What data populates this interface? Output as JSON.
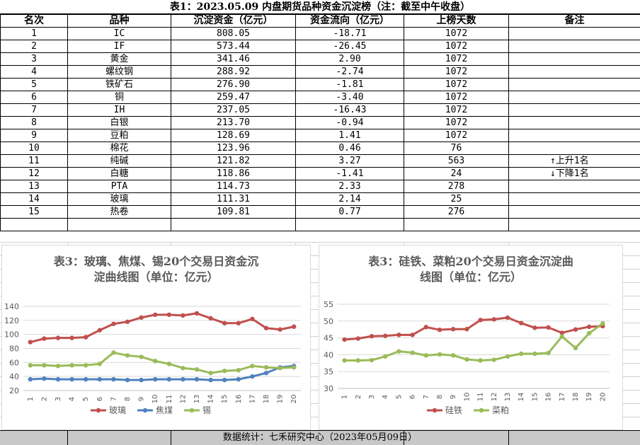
{
  "title": "表1：2023.05.09 内盘期货品种资金沉淀榜（注：截至中午收盘）",
  "table": {
    "headers": [
      "名次",
      "品种",
      "沉淀资金（亿元）",
      "资金流向（亿元）",
      "上榜天数",
      "备注"
    ],
    "rows": [
      [
        "1",
        "IC",
        "808.05",
        "-18.71",
        "1072",
        ""
      ],
      [
        "2",
        "IF",
        "573.44",
        "-26.45",
        "1072",
        ""
      ],
      [
        "3",
        "黄金",
        "341.46",
        "2.90",
        "1072",
        ""
      ],
      [
        "4",
        "螺纹钢",
        "288.92",
        "-2.74",
        "1072",
        ""
      ],
      [
        "5",
        "铁矿石",
        "276.90",
        "-1.81",
        "1072",
        ""
      ],
      [
        "6",
        "铜",
        "259.47",
        "-3.40",
        "1072",
        ""
      ],
      [
        "7",
        "IH",
        "237.05",
        "-16.43",
        "1072",
        ""
      ],
      [
        "8",
        "白银",
        "213.70",
        "-0.94",
        "1072",
        ""
      ],
      [
        "9",
        "豆粕",
        "128.69",
        "1.41",
        "1072",
        ""
      ],
      [
        "10",
        "棉花",
        "123.96",
        "0.46",
        "76",
        ""
      ],
      [
        "11",
        "纯碱",
        "121.82",
        "3.27",
        "563",
        "↑上升1名"
      ],
      [
        "12",
        "白糖",
        "118.86",
        "-1.41",
        "24",
        "↓下降1名"
      ],
      [
        "13",
        "PTA",
        "114.73",
        "2.33",
        "278",
        ""
      ],
      [
        "14",
        "玻璃",
        "111.31",
        "2.14",
        "25",
        ""
      ],
      [
        "15",
        "热卷",
        "109.81",
        "0.77",
        "276",
        ""
      ],
      [
        "",
        "",
        "",
        "",
        "",
        ""
      ]
    ]
  },
  "chart_data": [
    {
      "type": "line",
      "title": "表3：玻璃、焦煤、锡20个交易日资金沉淀曲线图（单位：亿元）",
      "title_lines": [
        "表3：玻璃、焦煤、锡20个交易日资金沉",
        "淀曲线图（单位：亿元）"
      ],
      "x": [
        "1",
        "2",
        "3",
        "4",
        "5",
        "6",
        "7",
        "8",
        "9",
        "10",
        "11",
        "12",
        "13",
        "14",
        "15",
        "16",
        "17",
        "18",
        "19",
        "20"
      ],
      "ylim": [
        20,
        140
      ],
      "yticks": [
        20,
        40,
        60,
        80,
        100,
        120,
        140
      ],
      "legend_position": "bottom",
      "grid": true,
      "series": [
        {
          "name": "玻璃",
          "color": "#c0504d",
          "values": [
            89,
            94,
            95,
            95,
            96,
            106,
            115,
            118,
            124,
            128,
            128,
            127,
            130,
            123,
            116,
            116,
            122,
            109,
            107,
            111
          ]
        },
        {
          "name": "焦煤",
          "color": "#4f81bd",
          "values": [
            36,
            37,
            36,
            36,
            36,
            36,
            36,
            35,
            35,
            36,
            36,
            36,
            36,
            35,
            35,
            36,
            40,
            45,
            53,
            55
          ]
        },
        {
          "name": "锡",
          "color": "#9bbb59",
          "values": [
            56,
            56,
            55,
            56,
            56,
            58,
            74,
            70,
            68,
            62,
            58,
            52,
            50,
            45,
            48,
            49,
            55,
            53,
            52,
            53
          ]
        }
      ]
    },
    {
      "type": "line",
      "title": "表3：硅铁、菜粕20个交易日资金沉淀曲线图（单位：亿元）",
      "title_lines": [
        "表3：硅铁、菜粕20个交易日资金沉淀曲",
        "线图（单位：亿元）"
      ],
      "x": [
        "1",
        "2",
        "3",
        "4",
        "5",
        "6",
        "7",
        "8",
        "9",
        "10",
        "11",
        "12",
        "13",
        "14",
        "15",
        "16",
        "17",
        "18",
        "19",
        "20"
      ],
      "ylim": [
        30,
        55
      ],
      "yticks": [
        30,
        35,
        40,
        45,
        50,
        55
      ],
      "legend_position": "bottom",
      "grid": true,
      "series": [
        {
          "name": "硅铁",
          "color": "#c0504d",
          "values": [
            44.5,
            44.8,
            45.5,
            45.6,
            45.9,
            45.9,
            48.2,
            47.4,
            47.6,
            47.6,
            50.3,
            50.5,
            51.0,
            49.4,
            48.0,
            48.1,
            46.5,
            47.5,
            48.3,
            48.5
          ]
        },
        {
          "name": "菜粕",
          "color": "#9bbb59",
          "values": [
            38.3,
            38.3,
            38.4,
            39.5,
            41.0,
            40.6,
            39.8,
            40.1,
            39.8,
            38.6,
            38.3,
            38.5,
            39.5,
            40.3,
            40.3,
            40.5,
            45.4,
            42.0,
            46.4,
            49.3
          ]
        }
      ]
    }
  ],
  "footer": "数据统计：七禾研究中心（2023年05月09日）"
}
